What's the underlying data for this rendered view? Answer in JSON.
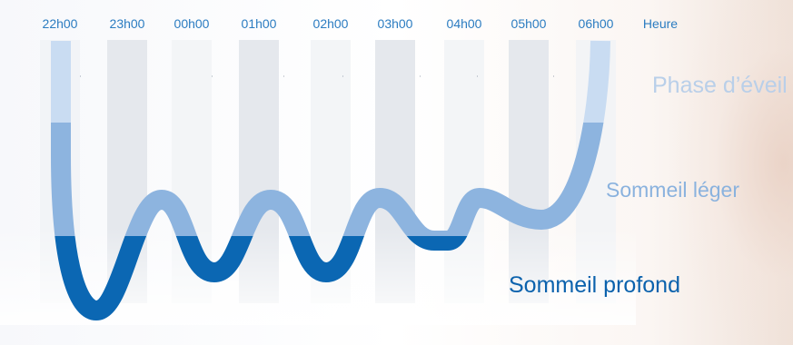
{
  "header": {
    "hours": [
      "22h00",
      "23h00",
      "00h00",
      "01h00",
      "02h00",
      "03h00",
      "04h00",
      "05h00",
      "06h00"
    ],
    "axis_label": "Heure"
  },
  "phases": {
    "eveil": "Phase d’éveil",
    "leger": "Sommeil léger",
    "profond": "Sommeil profond"
  },
  "colors": {
    "eveil": "#c9dcf2",
    "leger": "#8db4df",
    "profond": "#0b67b3",
    "hour_text": "#2b7cc1",
    "column_dark": "#e4e7ec",
    "column_light": "#f1f3f6"
  }
}
